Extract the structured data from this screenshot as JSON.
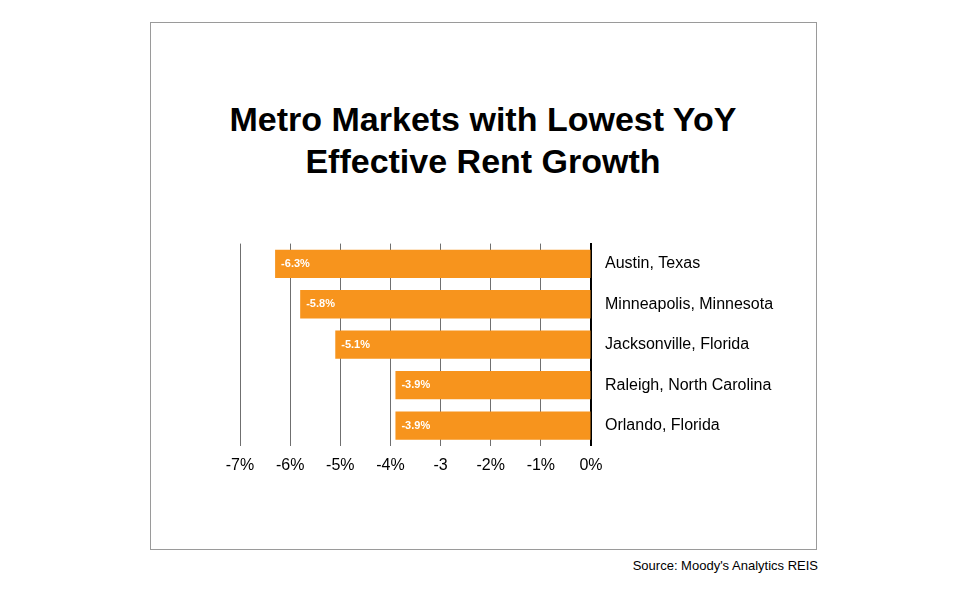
{
  "chart_data": {
    "type": "bar",
    "title": "Metro Markets with Lowest YoY Effective Rent Growth",
    "source": "Source: Moody's Analytics REIS",
    "orientation": "horizontal",
    "categories": [
      "Austin, Texas",
      "Minneapolis, Minnesota",
      "Jacksonville, Florida",
      "Raleigh, North Carolina",
      "Orlando, Florida"
    ],
    "values": [
      -6.3,
      -5.8,
      -5.1,
      -3.9,
      -3.9
    ],
    "value_labels": [
      "-6.3%",
      "-5.8%",
      "-5.1%",
      "-3.9%",
      "-3.9%"
    ],
    "color": "#f7941d",
    "data_labels": true,
    "xlim": [
      -7,
      0
    ],
    "xticks": [
      {
        "value": -7,
        "label": "-7%"
      },
      {
        "value": -6,
        "label": "-6%"
      },
      {
        "value": -5,
        "label": "-5%"
      },
      {
        "value": -4,
        "label": "-4%"
      },
      {
        "value": -3,
        "label": "-3"
      },
      {
        "value": -2,
        "label": "-2%"
      },
      {
        "value": -1,
        "label": "-1%"
      },
      {
        "value": 0,
        "label": "0%"
      }
    ],
    "grid": true
  }
}
